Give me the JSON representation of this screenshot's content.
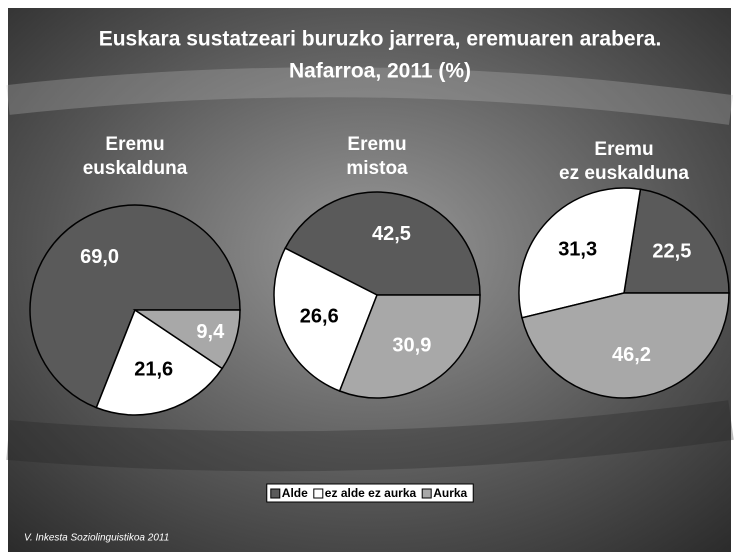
{
  "title": [
    "Euskara sustatzeari buruzko jarrera, eremuaren arabera.",
    "Nafarroa, 2011 (%)"
  ],
  "source": "V. Inkesta Soziolinguistikoa 2011",
  "chart_data": [
    {
      "type": "pie",
      "title": [
        "Eremu",
        "euskalduna"
      ],
      "categories": [
        "Alde",
        "ez alde ez aurka",
        "Aurka"
      ],
      "values": [
        69.0,
        21.6,
        9.4
      ],
      "value_labels": [
        "69,0",
        "21,6",
        "9,4"
      ],
      "colors": [
        "#5a5a5a",
        "#ffffff",
        "#a8a8a8"
      ]
    },
    {
      "type": "pie",
      "title": [
        "Eremu",
        "mistoa"
      ],
      "categories": [
        "Alde",
        "ez alde ez aurka",
        "Aurka"
      ],
      "values": [
        42.5,
        26.6,
        30.9
      ],
      "value_labels": [
        "42,5",
        "26,6",
        "30,9"
      ],
      "colors": [
        "#5a5a5a",
        "#ffffff",
        "#a8a8a8"
      ]
    },
    {
      "type": "pie",
      "title": [
        "Eremu",
        "ez euskalduna"
      ],
      "categories": [
        "Alde",
        "ez alde ez aurka",
        "Aurka"
      ],
      "values": [
        22.5,
        31.3,
        46.2
      ],
      "value_labels": [
        "22,5",
        "31,3",
        "46,2"
      ],
      "colors": [
        "#5a5a5a",
        "#ffffff",
        "#a8a8a8"
      ]
    }
  ]
}
